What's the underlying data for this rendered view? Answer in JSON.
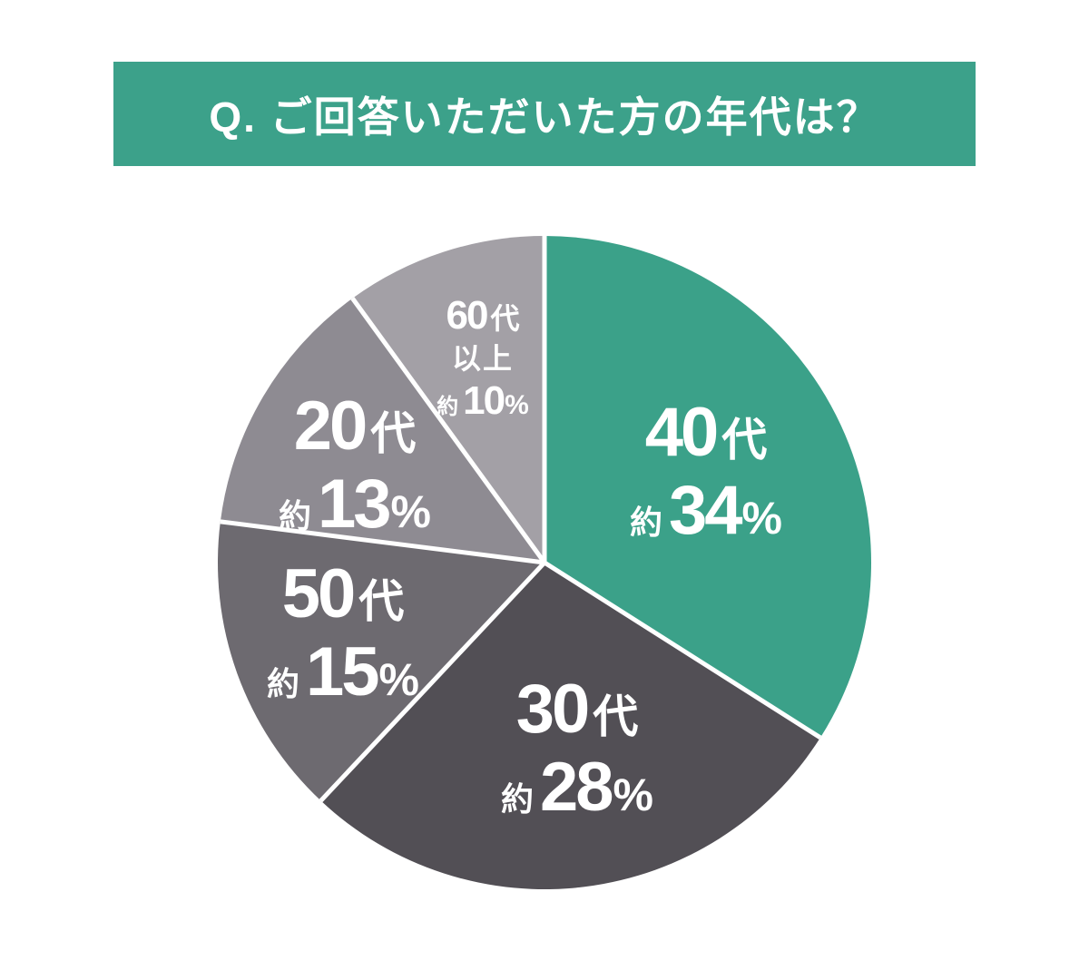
{
  "page": {
    "background": "#FFFFFF"
  },
  "header": {
    "title": "Q. ご回答いただいた方の年代は？",
    "background": "#3CA18A",
    "text_color": "#FFFFFF"
  },
  "chart_data": {
    "type": "pie",
    "title": "Q. ご回答いただいた方の年代は？",
    "unit": "%",
    "direction": "clockwise",
    "start_angle_deg": 0,
    "total": 100,
    "separator_color": "#FFFFFF",
    "label_text_color": "#FFFFFF",
    "categories": [
      "40代",
      "30代",
      "50代",
      "20代",
      "60代以上"
    ],
    "values": [
      34,
      28,
      15,
      13,
      10
    ],
    "slices": [
      {
        "slug": "40s",
        "category": "40代",
        "value": 34,
        "color": "#3BA189",
        "label": {
          "number": "40",
          "suffix": "代",
          "approx": "約",
          "percent": "34",
          "sign": "%"
        }
      },
      {
        "slug": "30s",
        "category": "30代",
        "value": 28,
        "color": "#524F55",
        "label": {
          "number": "30",
          "suffix": "代",
          "approx": "約",
          "percent": "28",
          "sign": "%"
        }
      },
      {
        "slug": "50s",
        "category": "50代",
        "value": 15,
        "color": "#6D6A70",
        "label": {
          "number": "50",
          "suffix": "代",
          "approx": "約",
          "percent": "15",
          "sign": "%"
        }
      },
      {
        "slug": "20s",
        "category": "20代",
        "value": 13,
        "color": "#8E8B92",
        "label": {
          "number": "20",
          "suffix": "代",
          "approx": "約",
          "percent": "13",
          "sign": "%"
        }
      },
      {
        "slug": "60s-plus",
        "category": "60代以上",
        "value": 10,
        "color": "#A3A0A6",
        "label": {
          "number": "60",
          "suffix": "代",
          "suffix2": "以上",
          "approx": "約",
          "percent": "10",
          "sign": "%"
        }
      }
    ]
  }
}
